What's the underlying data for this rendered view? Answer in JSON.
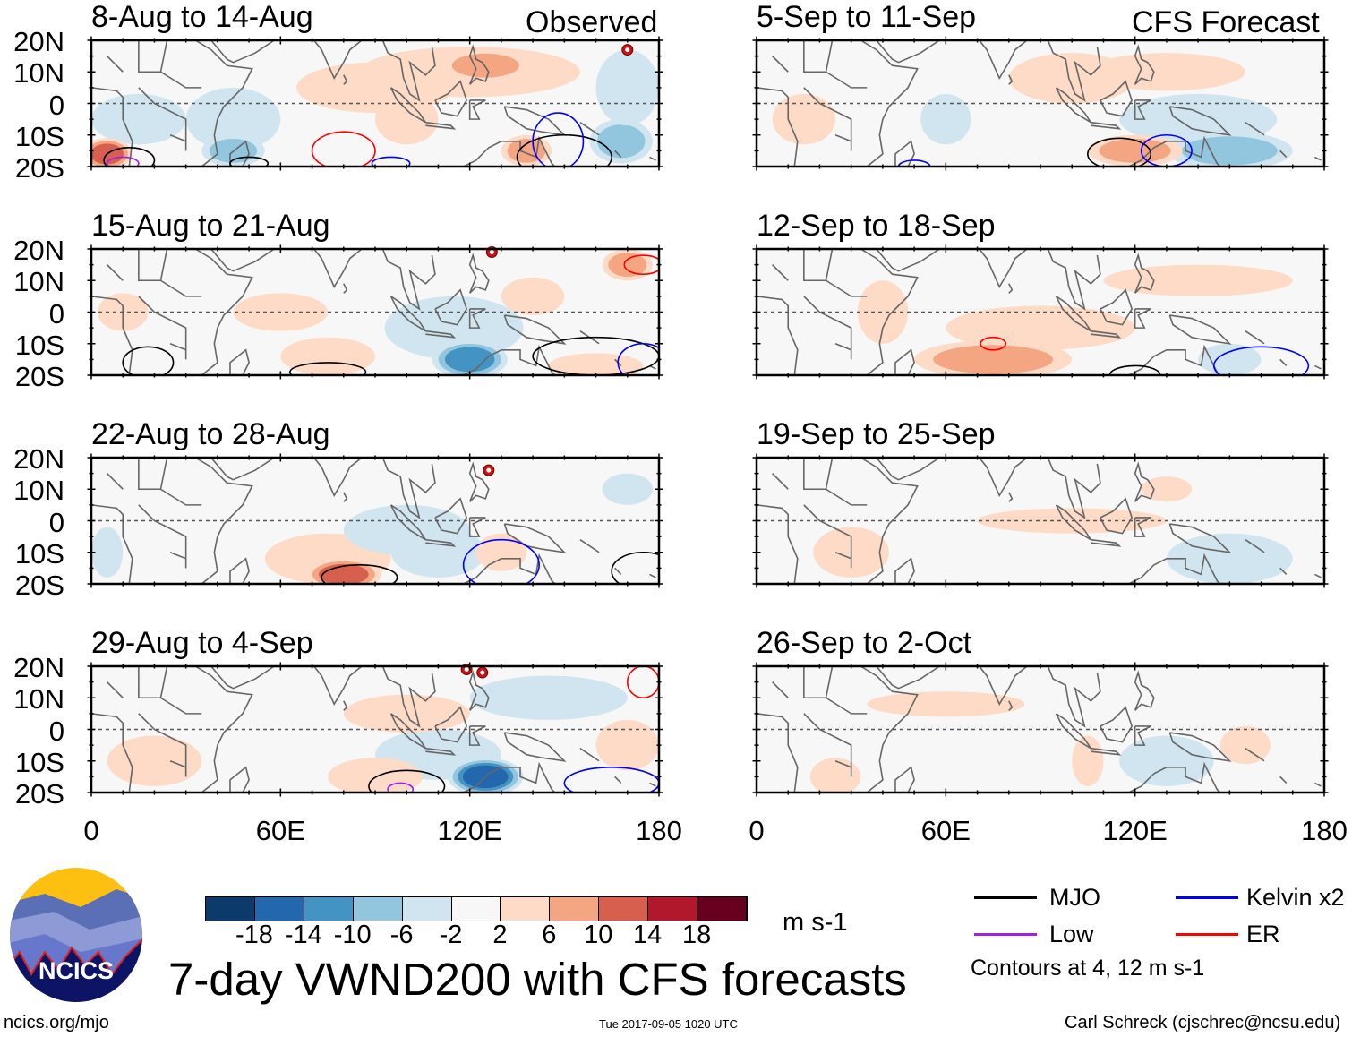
{
  "labels": {
    "observed": "Observed",
    "forecast": "CFS Forecast"
  },
  "main_title": "7-day VWND200 with CFS forecasts",
  "footer": {
    "left": "ncics.org/mjo",
    "center": "Tue 2017-09-05 1020 UTC",
    "right": "Carl Schreck (cjschrec@ncsu.edu)"
  },
  "logo": {
    "text": "NCICS"
  },
  "lat_ticks": [
    "20N",
    "10N",
    "0",
    "10S",
    "20S"
  ],
  "lon_ticks": [
    "0",
    "60E",
    "120E",
    "180"
  ],
  "colorbar": {
    "units": "m s-1",
    "labels": [
      "-18",
      "-14",
      "-10",
      "-6",
      "-2",
      "2",
      "6",
      "10",
      "14",
      "18"
    ],
    "colors": [
      "#0b3a6b",
      "#2367ad",
      "#4393c3",
      "#92c5de",
      "#d1e5f0",
      "#f7f7f7",
      "#fddbc7",
      "#f4a582",
      "#d6604d",
      "#b2182b",
      "#67001f"
    ]
  },
  "legend": {
    "items": [
      {
        "label": "MJO",
        "color": "#000000"
      },
      {
        "label": "Kelvin x2",
        "color": "#0000ff"
      },
      {
        "label": "Low",
        "color": "#a020f0"
      },
      {
        "label": "ER",
        "color": "#ff0000"
      }
    ],
    "note": "Contours at 4, 12 m s-1"
  },
  "chart_data": {
    "type": "heatmap",
    "variable": "200-hPa meridional wind anomaly",
    "lon_range": [
      0,
      180
    ],
    "lat_range": [
      -20,
      20
    ],
    "panels": [
      {
        "title": "8-Aug to 14-Aug",
        "kind": "observed",
        "anomalies": [
          [
            120,
            10,
            35,
            8,
            4
          ],
          [
            125,
            12,
            14,
            5,
            8
          ],
          [
            90,
            5,
            25,
            8,
            3
          ],
          [
            15,
            -5,
            15,
            8,
            -3
          ],
          [
            45,
            -5,
            15,
            10,
            -4
          ],
          [
            45,
            -15,
            10,
            5,
            -8
          ],
          [
            5,
            -16,
            8,
            5,
            12
          ],
          [
            100,
            -5,
            10,
            8,
            3
          ],
          [
            138,
            -15,
            8,
            5,
            7
          ],
          [
            168,
            -12,
            10,
            7,
            -8
          ],
          [
            170,
            5,
            10,
            12,
            -3
          ]
        ],
        "contours": [
          [
            "ER",
            80,
            -15,
            10,
            6
          ],
          [
            "MJO",
            150,
            -17,
            15,
            7
          ],
          [
            "Kelvin",
            148,
            -12,
            8,
            9
          ],
          [
            "MJO",
            12,
            -18,
            8,
            4
          ],
          [
            "Low",
            10,
            -19,
            5,
            2
          ],
          [
            "MJO",
            50,
            -19,
            6,
            2
          ],
          [
            "Kelvin",
            95,
            -19,
            6,
            2
          ]
        ],
        "storms": [
          [
            170,
            17
          ]
        ]
      },
      {
        "title": "15-Aug to 21-Aug",
        "kind": "observed",
        "anomalies": [
          [
            75,
            -14,
            15,
            6,
            5
          ],
          [
            115,
            -5,
            22,
            10,
            -4
          ],
          [
            120,
            -15,
            12,
            6,
            -12
          ],
          [
            170,
            15,
            8,
            5,
            8
          ],
          [
            10,
            0,
            8,
            6,
            4
          ],
          [
            60,
            0,
            15,
            6,
            4
          ],
          [
            140,
            5,
            10,
            6,
            4
          ],
          [
            160,
            -17,
            15,
            4,
            5
          ]
        ],
        "contours": [
          [
            "ER",
            175,
            15,
            6,
            3
          ],
          [
            "MJO",
            75,
            -19,
            12,
            3
          ],
          [
            "MJO",
            160,
            -14,
            20,
            6
          ],
          [
            "Kelvin",
            175,
            -16,
            8,
            6
          ],
          [
            "MJO",
            18,
            -16,
            8,
            5
          ]
        ],
        "storms": [
          [
            127,
            19
          ]
        ]
      },
      {
        "title": "22-Aug to 28-Aug",
        "kind": "observed",
        "anomalies": [
          [
            75,
            -12,
            20,
            8,
            4
          ],
          [
            80,
            -17,
            12,
            5,
            12
          ],
          [
            100,
            -3,
            20,
            8,
            -3
          ],
          [
            110,
            -10,
            15,
            8,
            -6
          ],
          [
            130,
            -10,
            8,
            6,
            3
          ],
          [
            170,
            10,
            8,
            5,
            -5
          ],
          [
            5,
            -10,
            5,
            8,
            -6
          ]
        ],
        "contours": [
          [
            "MJO",
            85,
            -18,
            12,
            4
          ],
          [
            "Kelvin",
            130,
            -14,
            12,
            8
          ],
          [
            "MJO",
            175,
            -16,
            10,
            6
          ]
        ],
        "storms": [
          [
            126,
            16
          ]
        ]
      },
      {
        "title": "29-Aug to 4-Sep",
        "kind": "observed",
        "anomalies": [
          [
            110,
            -8,
            20,
            8,
            -6
          ],
          [
            125,
            -15,
            12,
            6,
            -16
          ],
          [
            145,
            10,
            25,
            7,
            -3
          ],
          [
            90,
            -15,
            15,
            6,
            4
          ],
          [
            100,
            5,
            20,
            6,
            4
          ],
          [
            170,
            -5,
            10,
            8,
            3
          ],
          [
            20,
            -10,
            15,
            8,
            3
          ]
        ],
        "contours": [
          [
            "ER",
            175,
            15,
            5,
            5
          ],
          [
            "MJO",
            100,
            -18,
            12,
            5
          ],
          [
            "Kelvin",
            165,
            -17,
            15,
            5
          ],
          [
            "Low",
            98,
            -19,
            4,
            2
          ]
        ],
        "storms": [
          [
            119,
            19
          ],
          [
            124,
            18
          ]
        ]
      },
      {
        "title": "5-Sep to 11-Sep",
        "kind": "forecast",
        "anomalies": [
          [
            140,
            -5,
            25,
            8,
            -4
          ],
          [
            150,
            -15,
            20,
            6,
            -10
          ],
          [
            120,
            -15,
            15,
            5,
            6
          ],
          [
            15,
            -5,
            10,
            8,
            4
          ],
          [
            100,
            8,
            20,
            8,
            4
          ],
          [
            60,
            -5,
            8,
            8,
            -3
          ],
          [
            130,
            10,
            25,
            6,
            4
          ]
        ],
        "contours": [
          [
            "MJO",
            115,
            -16,
            10,
            5
          ],
          [
            "Kelvin",
            130,
            -15,
            8,
            5
          ],
          [
            "Kelvin",
            50,
            -20,
            5,
            2
          ]
        ],
        "storms": []
      },
      {
        "title": "12-Sep to 18-Sep",
        "kind": "forecast",
        "anomalies": [
          [
            90,
            -5,
            30,
            7,
            4
          ],
          [
            75,
            -15,
            25,
            6,
            8
          ],
          [
            140,
            10,
            30,
            5,
            4
          ],
          [
            150,
            -15,
            10,
            5,
            -4
          ],
          [
            40,
            0,
            8,
            10,
            3
          ]
        ],
        "contours": [
          [
            "ER",
            75,
            -10,
            4,
            2
          ],
          [
            "Kelvin",
            160,
            -17,
            15,
            6
          ],
          [
            "MJO",
            120,
            -20,
            8,
            3
          ]
        ],
        "storms": []
      },
      {
        "title": "19-Sep to 25-Sep",
        "kind": "forecast",
        "anomalies": [
          [
            100,
            0,
            30,
            4,
            3
          ],
          [
            30,
            -10,
            12,
            8,
            3
          ],
          [
            150,
            -12,
            20,
            8,
            -3
          ],
          [
            20,
            10,
            10,
            8,
            -2
          ],
          [
            130,
            10,
            8,
            4,
            3
          ]
        ],
        "contours": [],
        "storms": []
      },
      {
        "title": "26-Sep to 2-Oct",
        "kind": "forecast",
        "anomalies": [
          [
            60,
            8,
            25,
            4,
            3
          ],
          [
            105,
            -10,
            5,
            8,
            3
          ],
          [
            25,
            -15,
            8,
            6,
            3
          ],
          [
            130,
            -10,
            15,
            8,
            -3
          ],
          [
            155,
            -5,
            8,
            6,
            3
          ],
          [
            140,
            12,
            10,
            5,
            -2
          ]
        ],
        "contours": [],
        "storms": []
      }
    ]
  }
}
